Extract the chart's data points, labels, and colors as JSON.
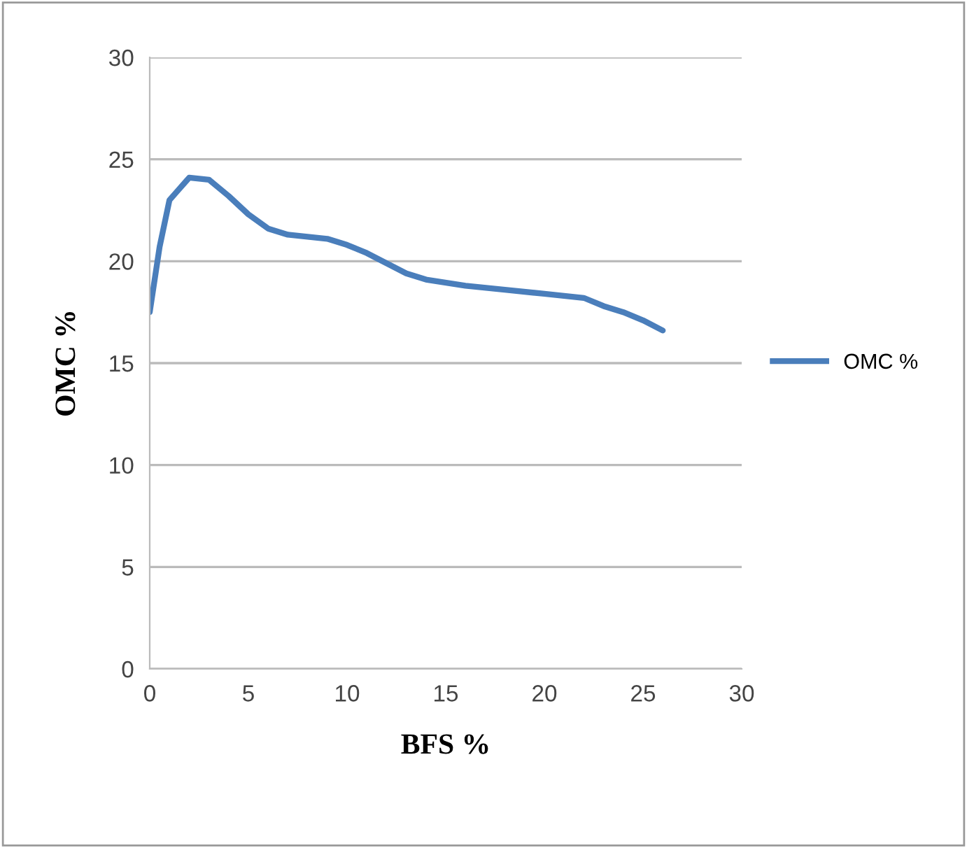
{
  "chart_data": {
    "type": "line",
    "xlabel": "BFS %",
    "ylabel": "OMC %",
    "x": [
      0,
      0.5,
      1,
      2,
      3,
      4,
      5,
      6,
      7,
      8,
      9,
      10,
      11,
      12,
      13,
      14,
      16,
      18,
      20,
      22,
      23,
      24,
      25,
      26
    ],
    "series": [
      {
        "name": "OMC %",
        "color": "#4a7ebb",
        "values": [
          17.5,
          20.7,
          23.0,
          24.1,
          24.0,
          23.2,
          22.3,
          21.6,
          21.3,
          21.2,
          21.1,
          20.8,
          20.4,
          19.9,
          19.4,
          19.1,
          18.8,
          18.6,
          18.4,
          18.2,
          17.8,
          17.5,
          17.1,
          16.6
        ]
      }
    ],
    "xlim": [
      0,
      30
    ],
    "xticks": [
      0,
      5,
      10,
      15,
      20,
      25,
      30
    ],
    "ylim": [
      0,
      30
    ],
    "yticks": [
      0,
      5,
      10,
      15,
      20,
      25,
      30
    ],
    "grid": "y",
    "legend": "right",
    "marker": "none",
    "line_style": "solid"
  }
}
